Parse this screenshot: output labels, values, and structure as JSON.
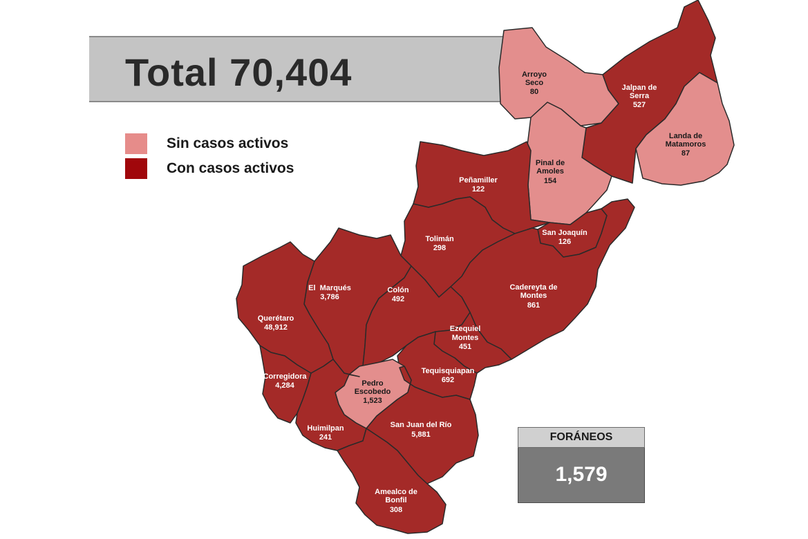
{
  "total": {
    "label": "Total 70,404"
  },
  "legend": [
    {
      "label": "Sin casos activos",
      "color": "#e68c8a"
    },
    {
      "label": "Con casos activos",
      "color": "#a0070b"
    }
  ],
  "colors": {
    "active": "#a42a28",
    "inactive": "#e38e8d",
    "border": "#2a2a2a"
  },
  "municipalities": [
    {
      "name_lines": [
        "Arroyo",
        "Seco"
      ],
      "cases": "80",
      "active": false
    },
    {
      "name_lines": [
        "Jalpan de",
        "Serra"
      ],
      "cases": "527",
      "active": true
    },
    {
      "name_lines": [
        "Landa de",
        "Matamoros"
      ],
      "cases": "87",
      "active": false
    },
    {
      "name_lines": [
        "Pinal de",
        "Amoles"
      ],
      "cases": "154",
      "active": false
    },
    {
      "name_lines": [
        "Peñamiller"
      ],
      "cases": "122",
      "active": true
    },
    {
      "name_lines": [
        "San Joaquín"
      ],
      "cases": "126",
      "active": true
    },
    {
      "name_lines": [
        "Tolimán"
      ],
      "cases": "298",
      "active": true
    },
    {
      "name_lines": [
        "Cadereyta de",
        "Montes"
      ],
      "cases": "861",
      "active": true
    },
    {
      "name_lines": [
        "El  Marqués"
      ],
      "cases": "3,786",
      "active": true
    },
    {
      "name_lines": [
        "Colón"
      ],
      "cases": "492",
      "active": true
    },
    {
      "name_lines": [
        "Querétaro"
      ],
      "cases": "48,912",
      "active": true
    },
    {
      "name_lines": [
        "Ezequiel",
        "Montes"
      ],
      "cases": "451",
      "active": true
    },
    {
      "name_lines": [
        "Tequisquiapan"
      ],
      "cases": "692",
      "active": true
    },
    {
      "name_lines": [
        "Corregidora"
      ],
      "cases": "4,284",
      "active": true
    },
    {
      "name_lines": [
        "Pedro",
        "Escobedo"
      ],
      "cases": "1,523",
      "active": false
    },
    {
      "name_lines": [
        "Huimilpan"
      ],
      "cases": "241",
      "active": true
    },
    {
      "name_lines": [
        "San Juan del Río"
      ],
      "cases": "5,881",
      "active": true
    },
    {
      "name_lines": [
        "Amealco de",
        "Bonfil"
      ],
      "cases": "308",
      "active": true
    }
  ],
  "foraneos": {
    "title": "FORÁNEOS",
    "value": "1,579"
  }
}
